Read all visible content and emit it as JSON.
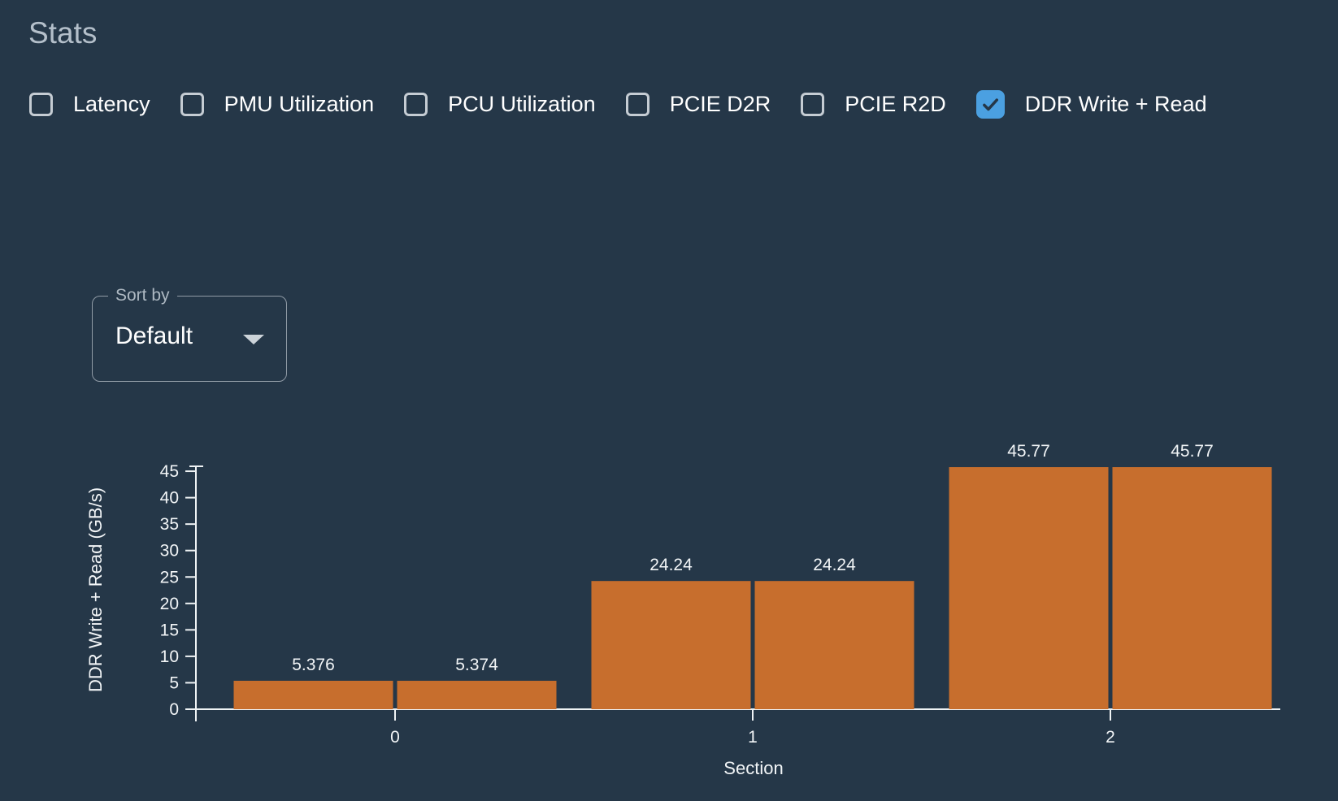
{
  "page": {
    "title": "Stats"
  },
  "colors": {
    "background": "#253748",
    "title_text": "#b4bfca",
    "label_text": "#ffffff",
    "checkbox_border": "#c5ccd3",
    "checkbox_checked_fill": "#4ba0e1",
    "checkbox_check_mark": "#253748",
    "select_border": "#909ba6",
    "select_label_text": "#aeb9c3",
    "select_arrow": "#ccd3d9",
    "chart_text": "#f2f5f7",
    "axis_color": "#eff3f5",
    "bar_orange": "#c76e2d"
  },
  "icons": {
    "checked_toggle": "checkmark-icon",
    "sort_dropdown": "triangle-down-icon"
  },
  "stat_toggles": [
    {
      "label": "Latency",
      "checked": false
    },
    {
      "label": "PMU Utilization",
      "checked": false
    },
    {
      "label": "PCU Utilization",
      "checked": false
    },
    {
      "label": "PCIE D2R",
      "checked": false
    },
    {
      "label": "PCIE R2D",
      "checked": false
    },
    {
      "label": "DDR Write + Read",
      "checked": true
    }
  ],
  "sort_by": {
    "label": "Sort by",
    "value": "Default"
  },
  "chart_data": {
    "type": "bar",
    "title": "",
    "xlabel": "Section",
    "ylabel": "DDR Write + Read (GB/s)",
    "categories": [
      "0",
      "1",
      "2"
    ],
    "series": [
      {
        "name": "left-bar",
        "values": [
          5.376,
          24.24,
          45.77
        ]
      },
      {
        "name": "right-bar",
        "values": [
          5.374,
          24.24,
          45.77
        ]
      }
    ],
    "bar_value_labels": [
      [
        "5.376",
        "5.374"
      ],
      [
        "24.24",
        "24.24"
      ],
      [
        "45.77",
        "45.77"
      ]
    ],
    "ylim": [
      0,
      45
    ],
    "yticks": [
      0,
      5,
      10,
      15,
      20,
      25,
      30,
      35,
      40,
      45
    ],
    "bar_color": "#c76e2d",
    "grid": false,
    "legend": "none"
  }
}
